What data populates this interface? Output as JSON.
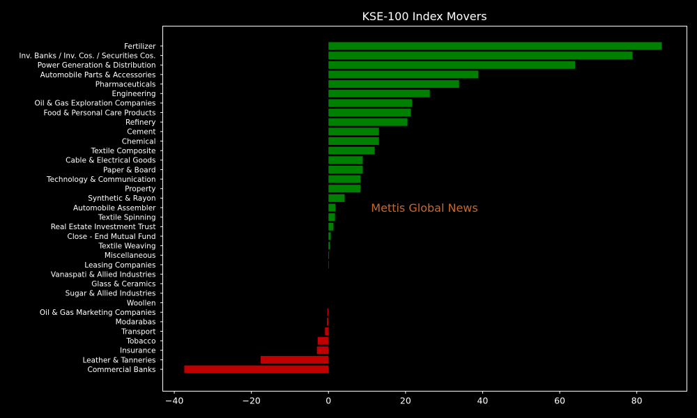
{
  "chart_data": {
    "type": "bar",
    "orientation": "horizontal",
    "title": "KSE-100 Index Movers",
    "xlabel": "",
    "ylabel": "",
    "xlim": [
      -43,
      93
    ],
    "xticks": [
      -40,
      -20,
      0,
      20,
      40,
      60,
      80
    ],
    "xtick_labels": [
      "−40",
      "−20",
      "0",
      "20",
      "40",
      "60",
      "80"
    ],
    "grid": false,
    "legend": "none",
    "watermark": "Mettis Global News",
    "positive_color": "#008000",
    "negative_color": "#c00000",
    "categories": [
      "Fertilizer",
      "Inv. Banks / Inv. Cos. / Securities Cos.",
      "Power Generation & Distribution",
      "Automobile Parts & Accessories",
      "Pharmaceuticals",
      "Engineering",
      "Oil & Gas Exploration Companies",
      "Food & Personal Care Products",
      "Refinery",
      "Cement",
      "Chemical",
      "Textile Composite",
      "Cable & Electrical Goods",
      "Paper & Board",
      "Technology & Communication",
      "Property",
      "Synthetic & Rayon",
      "Automobile Assembler",
      "Textile Spinning",
      "Real Estate Investment Trust",
      "Close - End Mutual Fund",
      "Textile Weaving",
      "Miscellaneous",
      "Leasing Companies",
      "Vanaspati & Allied Industries",
      "Glass & Ceramics",
      "Sugar & Allied Industries",
      "Woollen",
      "Oil & Gas Marketing Companies",
      "Modarabas",
      "Transport",
      "Tobacco",
      "Insurance",
      "Leather & Tanneries",
      "Commercial Banks"
    ],
    "values": [
      86.5,
      78.9,
      64.0,
      38.9,
      33.9,
      26.3,
      21.7,
      21.4,
      20.5,
      13.1,
      13.1,
      12.0,
      8.9,
      8.9,
      8.3,
      8.3,
      4.2,
      1.8,
      1.7,
      1.3,
      0.6,
      0.4,
      0.15,
      0.1,
      0.0,
      0.0,
      0.0,
      0.0,
      -0.3,
      -0.4,
      -0.9,
      -2.8,
      -3.0,
      -17.6,
      -37.4
    ]
  }
}
